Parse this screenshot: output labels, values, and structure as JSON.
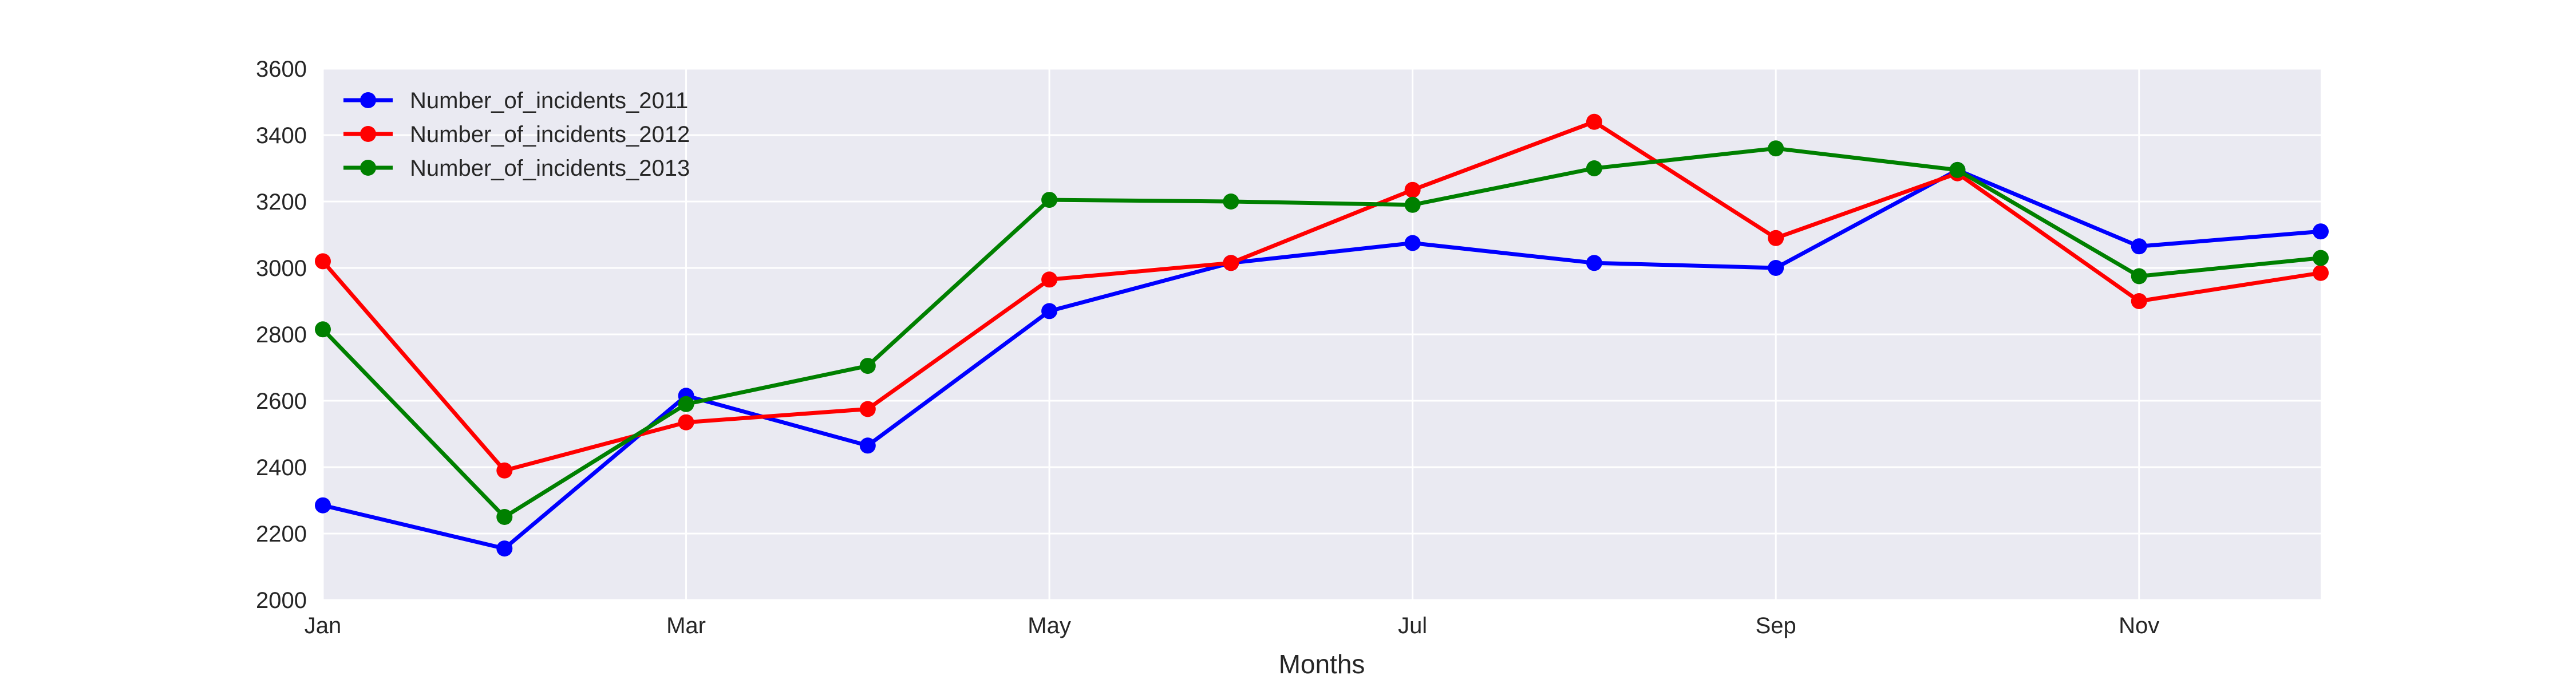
{
  "chart_data": {
    "type": "line",
    "title": "",
    "xlabel": "Months",
    "ylabel": "",
    "x": [
      1,
      2,
      3,
      4,
      5,
      6,
      7,
      8,
      9,
      10,
      11,
      12
    ],
    "xticks": [
      {
        "value": 1,
        "label": "Jan"
      },
      {
        "value": 3,
        "label": "Mar"
      },
      {
        "value": 5,
        "label": "May"
      },
      {
        "value": 7,
        "label": "Jul"
      },
      {
        "value": 9,
        "label": "Sep"
      },
      {
        "value": 11,
        "label": "Nov"
      }
    ],
    "xlim": [
      1,
      12
    ],
    "yticks": [
      2000,
      2200,
      2400,
      2600,
      2800,
      3000,
      3200,
      3400,
      3600
    ],
    "ylim": [
      2000,
      3600
    ],
    "grid": true,
    "legend_position": "top-left",
    "series": [
      {
        "name": "Number_of_incidents_2011",
        "color": "#0000ff",
        "values": [
          2285,
          2155,
          2615,
          2465,
          2870,
          3015,
          3075,
          3015,
          3000,
          3295,
          3065,
          3110
        ]
      },
      {
        "name": "Number_of_incidents_2012",
        "color": "#ff0000",
        "values": [
          3020,
          2390,
          2535,
          2575,
          2965,
          3015,
          3235,
          3440,
          3090,
          3285,
          2900,
          2985
        ]
      },
      {
        "name": "Number_of_incidents_2013",
        "color": "#008000",
        "values": [
          2815,
          2250,
          2590,
          2705,
          3205,
          3200,
          3190,
          3300,
          3360,
          3295,
          2975,
          3030
        ]
      }
    ]
  }
}
